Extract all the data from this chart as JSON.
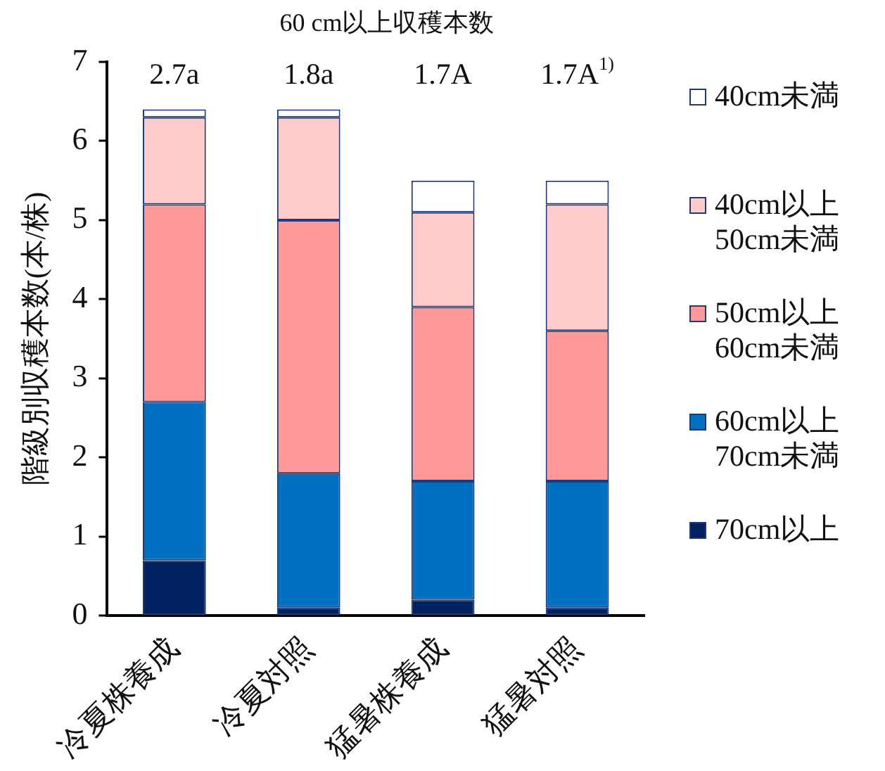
{
  "chart_data": {
    "type": "bar",
    "stacked": true,
    "title": "60 cm以上収穫本数",
    "ylabel": "階級別収穫本数(本/株)",
    "categories": [
      "冷夏株養成",
      "冷夏対照",
      "猛暑株養成",
      "猛暑対照"
    ],
    "series": [
      {
        "name": "70cm以上",
        "color": "#002060",
        "values": [
          0.7,
          0.1,
          0.2,
          0.1
        ]
      },
      {
        "name": "60cm以上\n70cm未満",
        "color": "#0070c0",
        "values": [
          2.0,
          1.7,
          1.5,
          1.6
        ]
      },
      {
        "name": "50cm以上\n60cm未満",
        "color": "#ff9999",
        "values": [
          2.5,
          3.2,
          2.2,
          1.9
        ]
      },
      {
        "name": "40cm以上\n50cm未満",
        "color": "#ffcccc",
        "values": [
          1.1,
          1.3,
          1.2,
          1.6
        ]
      },
      {
        "name": "40cm未満",
        "color": "#ffffff",
        "values": [
          0.1,
          0.1,
          0.4,
          0.3
        ]
      }
    ],
    "ylim": [
      0,
      7
    ],
    "yticks": [
      0,
      1,
      2,
      3,
      4,
      5,
      6,
      7
    ],
    "legend": "right",
    "annotations": [
      "2.7a",
      "1.8a",
      "1.7A",
      "1.7A$^{1)}$"
    ]
  }
}
